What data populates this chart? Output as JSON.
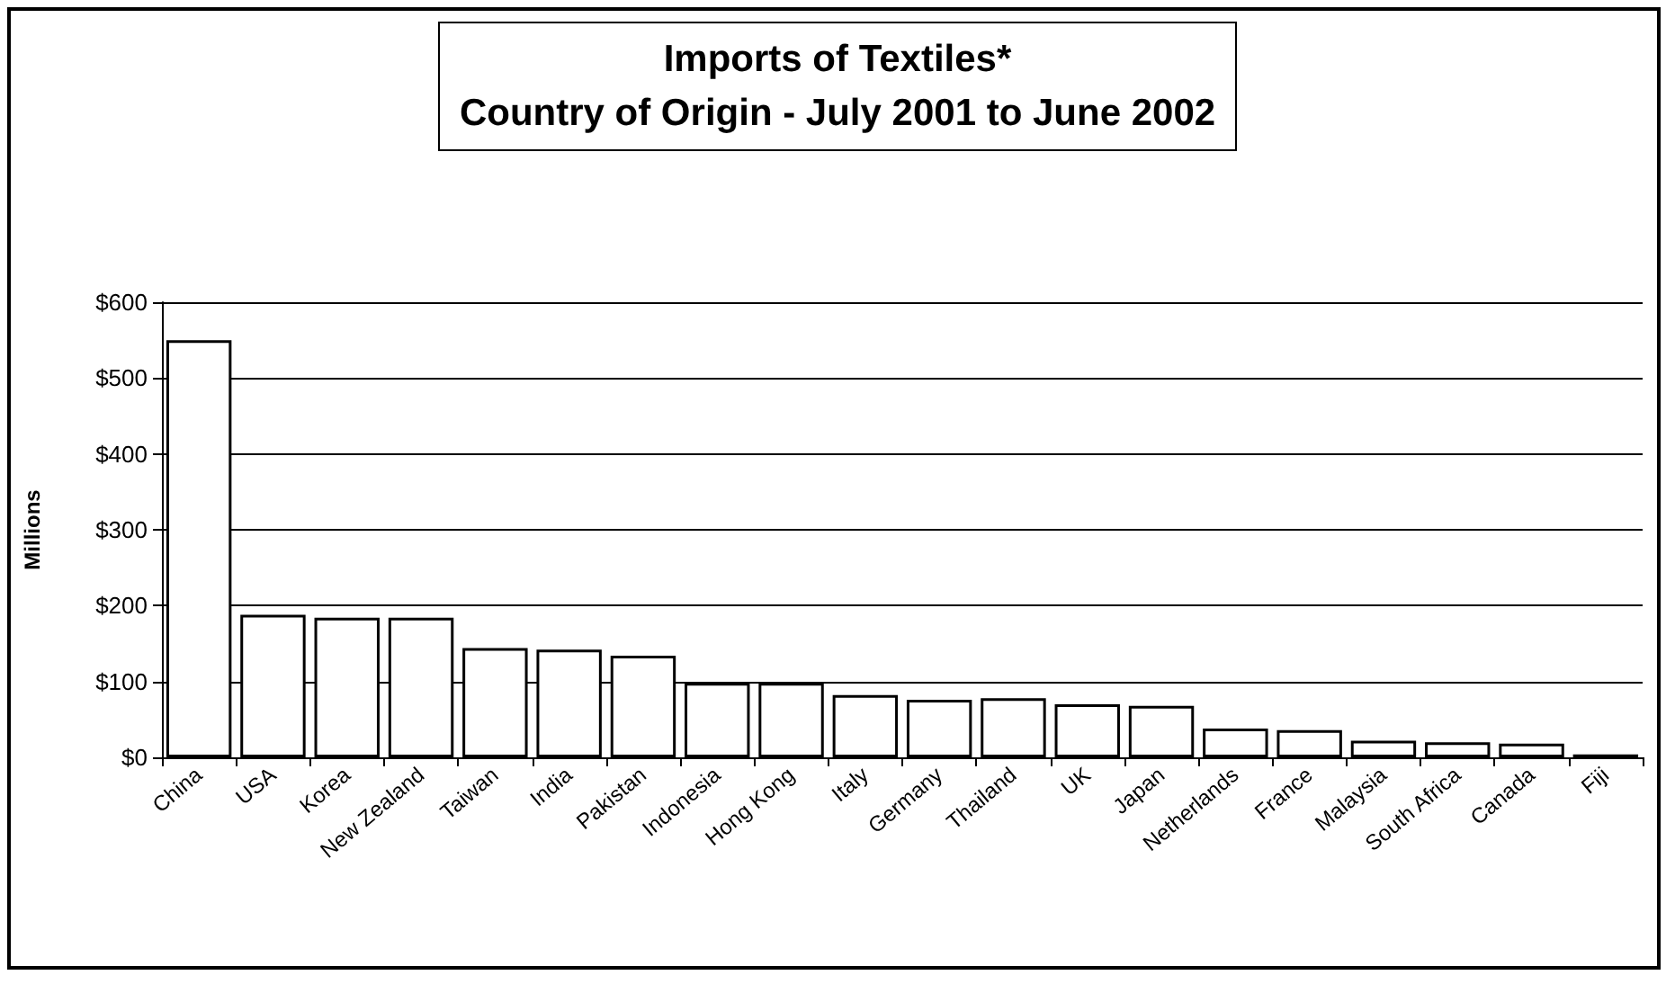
{
  "chart_data": {
    "type": "bar",
    "title": "Imports of Textiles*\nCountry of Origin - July 2001 to June 2002",
    "ylabel": "Millions",
    "categories": [
      "China",
      "USA",
      "Korea",
      "New Zealand",
      "Taiwan",
      "India",
      "Pakistan",
      "Indonesia",
      "Hong Kong",
      "Italy",
      "Germany",
      "Thailand",
      "UK",
      "Japan",
      "Netherlands",
      "France",
      "Malaysia",
      "South Africa",
      "Canada",
      "Fiji"
    ],
    "values": [
      550,
      188,
      184,
      184,
      144,
      142,
      134,
      98,
      98,
      82,
      76,
      78,
      70,
      68,
      38,
      36,
      22,
      20,
      18,
      4
    ],
    "color": "#ffffff",
    "ylim": [
      0,
      600
    ],
    "yticks": [
      {
        "value": 0,
        "label": "$0"
      },
      {
        "value": 100,
        "label": "$100"
      },
      {
        "value": 200,
        "label": "$200"
      },
      {
        "value": 300,
        "label": "$300"
      },
      {
        "value": 400,
        "label": "$400"
      },
      {
        "value": 500,
        "label": "$500"
      },
      {
        "value": 600,
        "label": "$600"
      }
    ],
    "grid": "y"
  }
}
